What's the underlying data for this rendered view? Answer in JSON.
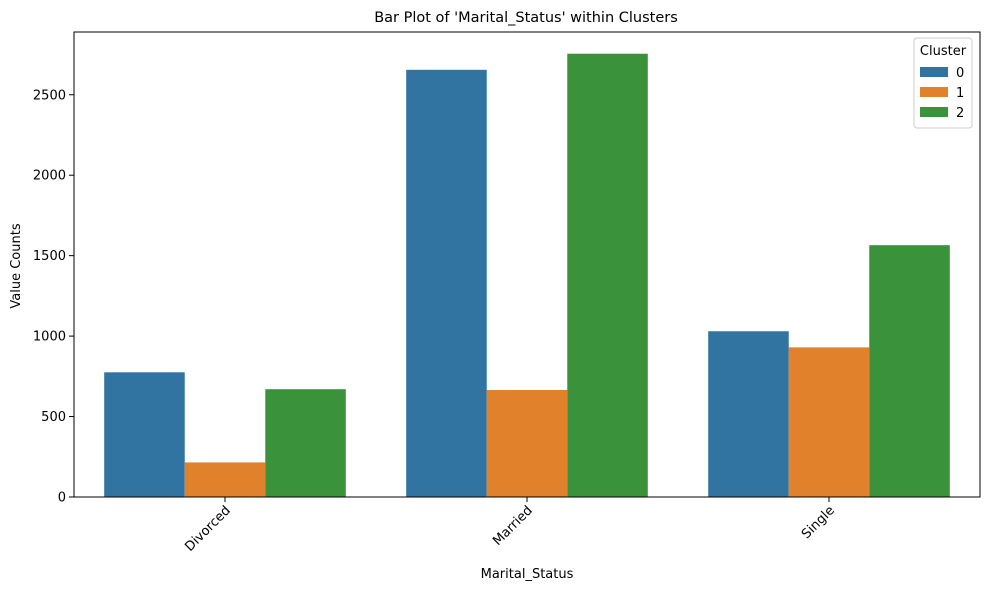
{
  "chart_data": {
    "type": "bar",
    "title": "Bar Plot of 'Marital_Status' within Clusters",
    "xlabel": "Marital_Status",
    "ylabel": "Value Counts",
    "categories": [
      "Divorced",
      "Married",
      "Single"
    ],
    "series": [
      {
        "name": "0",
        "values": [
          775,
          2655,
          1030
        ],
        "color": "#3274a1"
      },
      {
        "name": "1",
        "values": [
          215,
          665,
          930
        ],
        "color": "#e1812c"
      },
      {
        "name": "2",
        "values": [
          670,
          2755,
          1565
        ],
        "color": "#3a923a"
      }
    ],
    "ylim": [
      0,
      2890
    ],
    "yticks": [
      0,
      500,
      1000,
      1500,
      2000,
      2500
    ],
    "grid": false,
    "legend": {
      "title": "Cluster",
      "position": "top-right"
    },
    "tick_rotation": 45
  }
}
